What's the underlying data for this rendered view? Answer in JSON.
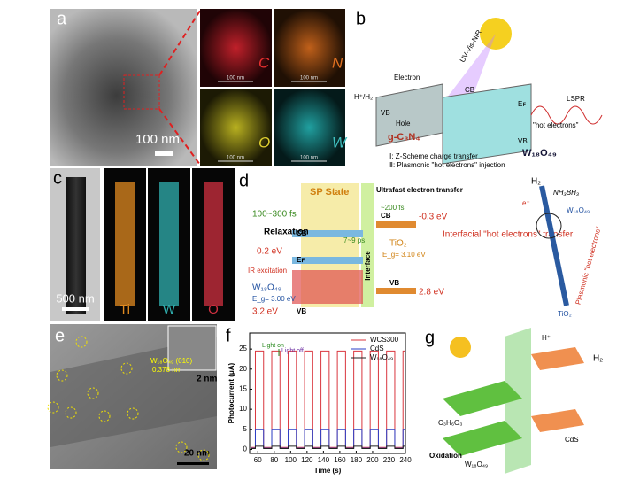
{
  "panels": {
    "a": {
      "letter": "a",
      "scale_bar": "100 nm",
      "maps": [
        {
          "element": "C",
          "scale": "100 nm"
        },
        {
          "element": "N",
          "scale": "100 nm"
        },
        {
          "element": "O",
          "scale": "100 nm"
        },
        {
          "element": "W",
          "scale": "100 nm"
        }
      ]
    },
    "b": {
      "letter": "b",
      "light": "UV-Vis-NIR",
      "electron": "Electron",
      "proton": "H⁺/H₂",
      "hole": "Hole",
      "vb1": "VB",
      "cb1": "CB",
      "vb2": "VB",
      "ef": "Eꜰ",
      "lspr": "LSPR",
      "hot": "\"hot electrons\"",
      "gcn": "g-C₃N₄",
      "wo": "W₁₈O₄₉",
      "note1": "Ⅰ: Z-Scheme charge transfer",
      "note2": "Ⅱ: Plasmonic \"hot electrons\" injection"
    },
    "c": {
      "letter": "c",
      "scale_bar": "500 nm",
      "maps": [
        "Ti",
        "W",
        "O"
      ]
    },
    "d": {
      "letter": "d",
      "sp": "SP State",
      "ultrafast": "Ultrafast electron transfer",
      "fs200": "~200 fs",
      "fs100": "100~300 fs",
      "relax": "Relaxation",
      "ps": "7~9 ps",
      "cb_wo": "CB",
      "ef": "Eꜰ",
      "cb_ti": "CB",
      "cb_ev": "-0.3 eV",
      "ev02": "0.2 eV",
      "tio2": "TiO₂",
      "tio2_gap": "E_g= 3.10 eV",
      "interface": "Interface",
      "ir": "IR excitation",
      "wo": "W₁₈O₄₉",
      "wo_gap": "E_g= 3.00 eV",
      "vb_ti": "VB",
      "ev28": "2.8 eV",
      "ev32": "3.2 eV",
      "vb_wo": "VB",
      "interfacial": "Interfacial \"hot electrons\" transfer",
      "h2": "H₂",
      "nh3": "NH₃BH₃",
      "wo2": "W₁₈O₄₉",
      "plasmonic": "Plasmonic \"hot electrons\"",
      "tio2b": "TiO₂",
      "eminus": "e⁻"
    },
    "e": {
      "letter": "e",
      "inset_scale": "2 nm",
      "scale_bar": "20 nm",
      "lattice": "W₁₈O₄₉ (010)",
      "spacing": "0.378 nm"
    },
    "g": {
      "letter": "g",
      "hplus": "H⁺",
      "h2": "H₂",
      "cds": "CdS",
      "c3": "C₃H₆O₃",
      "ox": "Oxidation",
      "wo": "W₁₈O₄₉"
    }
  },
  "chart_data": {
    "type": "line",
    "letter": "f",
    "xlabel": "Time (s)",
    "ylabel": "Photocurrent (μA)",
    "annotations": [
      "Light on",
      "Light off"
    ],
    "xlim": [
      50,
      240
    ],
    "ylim": [
      -1,
      29
    ],
    "xticks": [
      60,
      80,
      100,
      120,
      140,
      160,
      180,
      200,
      220,
      240
    ],
    "yticks": [
      0,
      5,
      10,
      15,
      20,
      25
    ],
    "legend": "upper right",
    "x": [
      52,
      57,
      57,
      67,
      67,
      77,
      77,
      87,
      87,
      97,
      97,
      107,
      107,
      117,
      117,
      127,
      127,
      137,
      137,
      147,
      147,
      157,
      157,
      167,
      167,
      177,
      177,
      187,
      187,
      197,
      197,
      207,
      207,
      217,
      217,
      227,
      227,
      237,
      237,
      240
    ],
    "series": [
      {
        "name": "WCS300",
        "color": "#d9363e",
        "values": [
          0.5,
          0.5,
          24.5,
          24.5,
          0.5,
          0.5,
          24.5,
          24.5,
          0.5,
          0.5,
          24.5,
          24.5,
          0.5,
          0.5,
          24.5,
          24.5,
          0.5,
          0.5,
          24.5,
          24.5,
          0.5,
          0.5,
          24.5,
          24.5,
          0.5,
          0.5,
          24.5,
          24.5,
          0.5,
          0.5,
          24.5,
          24.5,
          0.5,
          0.5,
          24.5,
          24.5,
          0.5,
          0.5,
          24.5,
          24.5
        ]
      },
      {
        "name": "CdS",
        "color": "#2b3fc7",
        "values": [
          0.3,
          0.3,
          5,
          5,
          0.3,
          0.3,
          5,
          5,
          0.3,
          0.3,
          5,
          5,
          0.3,
          0.3,
          5,
          5,
          0.3,
          0.3,
          5,
          5,
          0.3,
          0.3,
          5,
          5,
          0.3,
          0.3,
          5,
          5,
          0.3,
          0.3,
          5,
          5,
          0.3,
          0.3,
          5,
          5,
          0.3,
          0.3,
          5,
          5
        ]
      },
      {
        "name": "W₁₈O₄₉",
        "color": "#222222",
        "values": [
          0.2,
          0.2,
          0.8,
          0.8,
          0.2,
          0.2,
          0.8,
          0.8,
          0.2,
          0.2,
          0.8,
          0.8,
          0.2,
          0.2,
          0.8,
          0.8,
          0.2,
          0.2,
          0.8,
          0.8,
          0.2,
          0.2,
          0.8,
          0.8,
          0.2,
          0.2,
          0.8,
          0.8,
          0.2,
          0.2,
          0.8,
          0.8,
          0.2,
          0.2,
          0.8,
          0.8,
          0.2,
          0.2,
          0.8,
          0.8
        ]
      }
    ]
  }
}
